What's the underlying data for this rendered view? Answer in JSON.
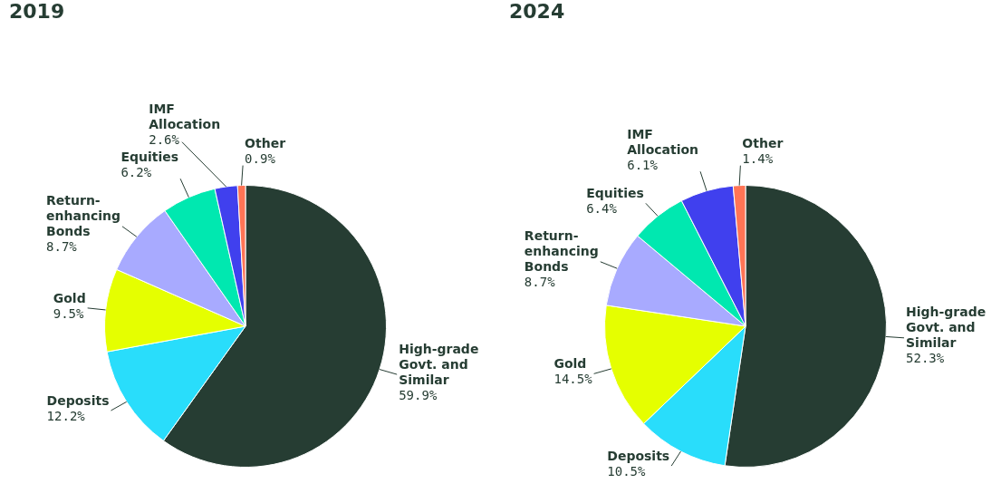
{
  "chart_data": [
    {
      "type": "pie",
      "title": "2019",
      "categories": [
        "High-grade Govt. and Similar",
        "Deposits",
        "Gold",
        "Return-enhancing Bonds",
        "Equities",
        "IMF Allocation",
        "Other"
      ],
      "values": [
        59.9,
        12.2,
        9.5,
        8.7,
        6.2,
        2.6,
        0.9
      ],
      "value_labels": [
        "59.9%",
        "12.2%",
        "9.5%",
        "8.7%",
        "6.2%",
        "2.6%",
        "0.9%"
      ],
      "colors": [
        "#263d33",
        "#29ddfb",
        "#e5ff00",
        "#a8aaff",
        "#00e8b0",
        "#4040ee",
        "#ff7455"
      ],
      "legend": false
    },
    {
      "type": "pie",
      "title": "2024",
      "categories": [
        "High-grade Govt. and Similar",
        "Deposits",
        "Gold",
        "Return-enhancing Bonds",
        "Equities",
        "IMF Allocation",
        "Other"
      ],
      "values": [
        52.3,
        10.5,
        14.5,
        8.7,
        6.4,
        6.1,
        1.4
      ],
      "value_labels": [
        "52.3%",
        "10.5%",
        "14.5%",
        "8.7%",
        "6.4%",
        "6.1%",
        "1.4%"
      ],
      "colors": [
        "#263d33",
        "#29ddfb",
        "#e5ff00",
        "#a8aaff",
        "#00e8b0",
        "#4040ee",
        "#ff7455"
      ],
      "legend": false
    }
  ]
}
